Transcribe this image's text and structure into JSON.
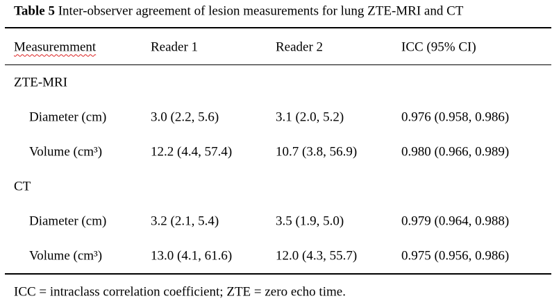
{
  "caption": {
    "label": "Table 5",
    "text": "Inter-observer agreement of lesion measurements for lung ZTE-MRI and CT"
  },
  "table": {
    "header": [
      "Measuremment",
      "Reader 1",
      "Reader 2",
      "ICC (95% CI)"
    ],
    "groups": [
      {
        "label": "ZTE-MRI",
        "rows": [
          [
            "Diameter (cm)",
            "3.0 (2.2, 5.6)",
            "3.1 (2.0, 5.2)",
            "0.976 (0.958, 0.986)"
          ],
          [
            "Volume (cm³)",
            "12.2 (4.4, 57.4)",
            "10.7 (3.8, 56.9)",
            "0.980 (0.966, 0.989)"
          ]
        ]
      },
      {
        "label": "CT",
        "rows": [
          [
            "Diameter (cm)",
            "3.2 (2.1, 5.4)",
            "3.5 (1.9, 5.0)",
            "0.979 (0.964, 0.988)"
          ],
          [
            "Volume (cm³)",
            "13.0 (4.1, 61.6)",
            "12.0 (4.3, 55.7)",
            "0.975 (0.956, 0.986)"
          ]
        ]
      }
    ]
  },
  "footnote": "ICC = intraclass correlation coefficient; ZTE = zero echo time."
}
